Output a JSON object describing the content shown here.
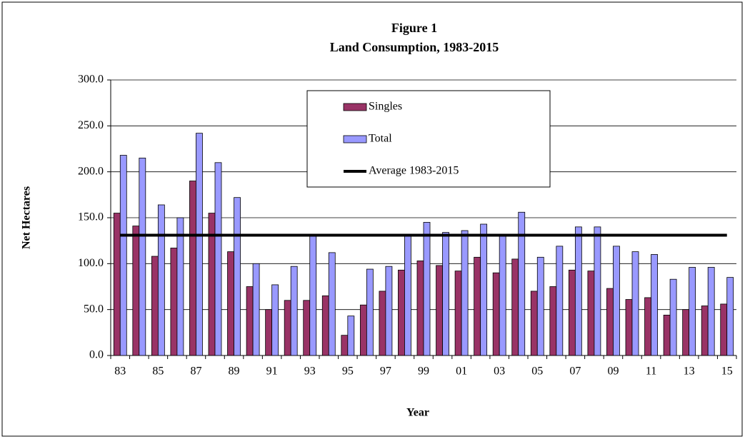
{
  "chart_data": {
    "type": "bar",
    "title": "Figure 1",
    "subtitle": "Land Consumption, 1983-2015",
    "x_label": "Year",
    "y_label": "Net Hectares",
    "categories": [
      "83",
      null,
      "85",
      null,
      "87",
      null,
      "89",
      null,
      "91",
      null,
      "93",
      null,
      "95",
      null,
      "97",
      null,
      "99",
      null,
      "01",
      null,
      "03",
      null,
      "05",
      null,
      "07",
      null,
      "09",
      null,
      "11",
      null,
      "13",
      null,
      "15"
    ],
    "series": [
      {
        "name": "Singles",
        "type": "bar",
        "color": "#993366",
        "values": [
          155,
          141,
          108,
          117,
          190,
          155,
          113,
          75,
          50,
          60,
          60,
          65,
          22,
          55,
          70,
          93,
          103,
          98,
          92,
          107,
          90,
          105,
          70,
          75,
          93,
          92,
          73,
          61,
          63,
          44,
          50,
          54,
          56
        ]
      },
      {
        "name": "Total",
        "type": "bar",
        "color": "#9999ff",
        "values": [
          218,
          215,
          164,
          150,
          242,
          210,
          172,
          100,
          77,
          97,
          132,
          112,
          43,
          94,
          97,
          130,
          145,
          134,
          136,
          143,
          132,
          156,
          107,
          119,
          140,
          140,
          119,
          113,
          110,
          83,
          96,
          96,
          85
        ]
      },
      {
        "name": "Average 1983-2015",
        "type": "line",
        "color": "#000000",
        "values": [
          131,
          131,
          131,
          131,
          131,
          131,
          131,
          131,
          131,
          131,
          131,
          131,
          131,
          131,
          131,
          131,
          131,
          131,
          131,
          131,
          131,
          131,
          131,
          131,
          131,
          131,
          131,
          131,
          131,
          131,
          131,
          131,
          131
        ]
      }
    ],
    "ylim": [
      0,
      300
    ],
    "yticks": [
      {
        "value": 0,
        "label": "0.0"
      },
      {
        "value": 50,
        "label": "50.0"
      },
      {
        "value": 100,
        "label": "100.0"
      },
      {
        "value": 150,
        "label": "150.0"
      },
      {
        "value": 200,
        "label": "200.0"
      },
      {
        "value": 250,
        "label": "250.0"
      },
      {
        "value": 300,
        "label": "300.0"
      }
    ],
    "grid": true,
    "legend": "top"
  }
}
